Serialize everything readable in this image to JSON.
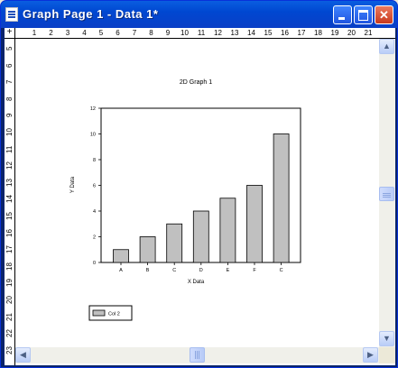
{
  "window": {
    "title": "Graph Page 1 - Data 1*"
  },
  "ruler": {
    "corner": "+",
    "horizontal": [
      "1",
      "2",
      "3",
      "4",
      "5",
      "6",
      "7",
      "8",
      "9",
      "10",
      "11",
      "12",
      "13",
      "14",
      "15",
      "16",
      "17",
      "18",
      "19",
      "20",
      "21"
    ],
    "vertical": [
      "5",
      "6",
      "7",
      "8",
      "9",
      "10",
      "11",
      "12",
      "13",
      "14",
      "15",
      "16",
      "17",
      "18",
      "19",
      "20",
      "21",
      "22",
      "23"
    ]
  },
  "colors": {
    "bar_fill": "#c0c0c0",
    "titlebar": "#0a4fd8"
  },
  "chart_data": {
    "type": "bar",
    "title": "2D Graph 1",
    "xlabel": "X Data",
    "ylabel": "Y Data",
    "categories": [
      "A",
      "B",
      "C",
      "D",
      "E",
      "F",
      "C"
    ],
    "series": [
      {
        "name": "Col 2",
        "values": [
          1,
          2,
          3,
          4,
          5,
          6,
          10
        ]
      }
    ],
    "ylim": [
      0,
      12
    ],
    "yticks": [
      "0",
      "2",
      "4",
      "6",
      "8",
      "10",
      "12"
    ],
    "grid": false,
    "legend_position": "bottom-left"
  }
}
